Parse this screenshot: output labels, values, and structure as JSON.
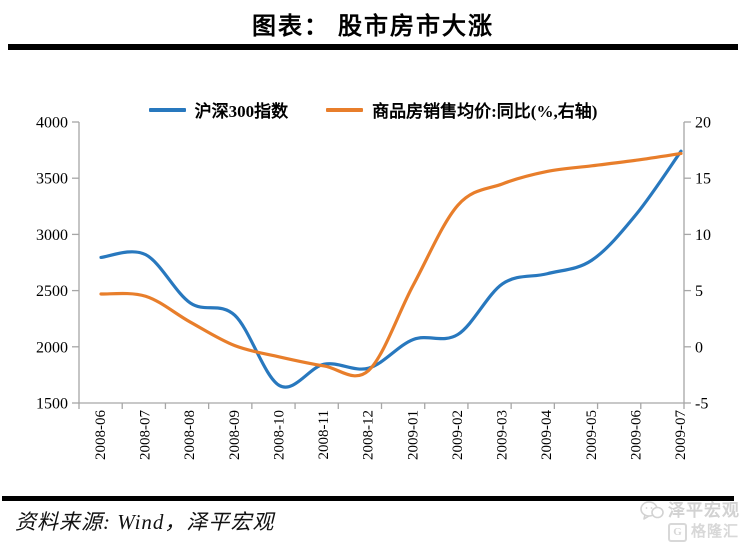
{
  "header": {
    "title": "图表： 股市房市大涨"
  },
  "footer": {
    "source": "资料来源: Wind，泽平宏观",
    "watermark_line1": "泽平宏观",
    "watermark_line2": "格隆汇",
    "watermark_icon": "wechat-chat-bubbles-icon",
    "watermark2_icon": "gelonghui-g-box-icon",
    "gelonghui_glyph": "G"
  },
  "colors": {
    "csi300_line": "#2878BE",
    "house_price_line": "#E87E2B",
    "axis": "#a6a6a6",
    "text": "#000000",
    "watermark": "#d2d2d2"
  },
  "chart_data": {
    "type": "line",
    "title": "股市房市大涨",
    "grid": false,
    "legend_position": "top",
    "categories": [
      "2008-06",
      "2008-07",
      "2008-08",
      "2008-09",
      "2008-10",
      "2008-11",
      "2008-12",
      "2009-01",
      "2009-02",
      "2009-03",
      "2009-04",
      "2009-05",
      "2009-06",
      "2009-07"
    ],
    "series": [
      {
        "name": "沪深300指数",
        "axis": "left",
        "color": "#2878BE",
        "values": [
          2795,
          2820,
          2390,
          2280,
          1655,
          1845,
          1810,
          2065,
          2110,
          2560,
          2650,
          2770,
          3180,
          3740
        ]
      },
      {
        "name": "商品房销售均价:同比(%,右轴)",
        "axis": "right",
        "color": "#E87E2B",
        "values": [
          4.7,
          4.5,
          2.2,
          0.1,
          -0.9,
          -1.7,
          -2.1,
          5.5,
          12.6,
          14.5,
          15.6,
          16.1,
          16.6,
          17.2
        ]
      }
    ],
    "left_axis": {
      "min": 1500,
      "max": 4000,
      "ticks": [
        4000,
        3500,
        3000,
        2500,
        2000,
        1500
      ]
    },
    "right_axis": {
      "min": -5,
      "max": 20,
      "ticks": [
        20,
        15,
        10,
        5,
        0,
        -5
      ]
    }
  }
}
